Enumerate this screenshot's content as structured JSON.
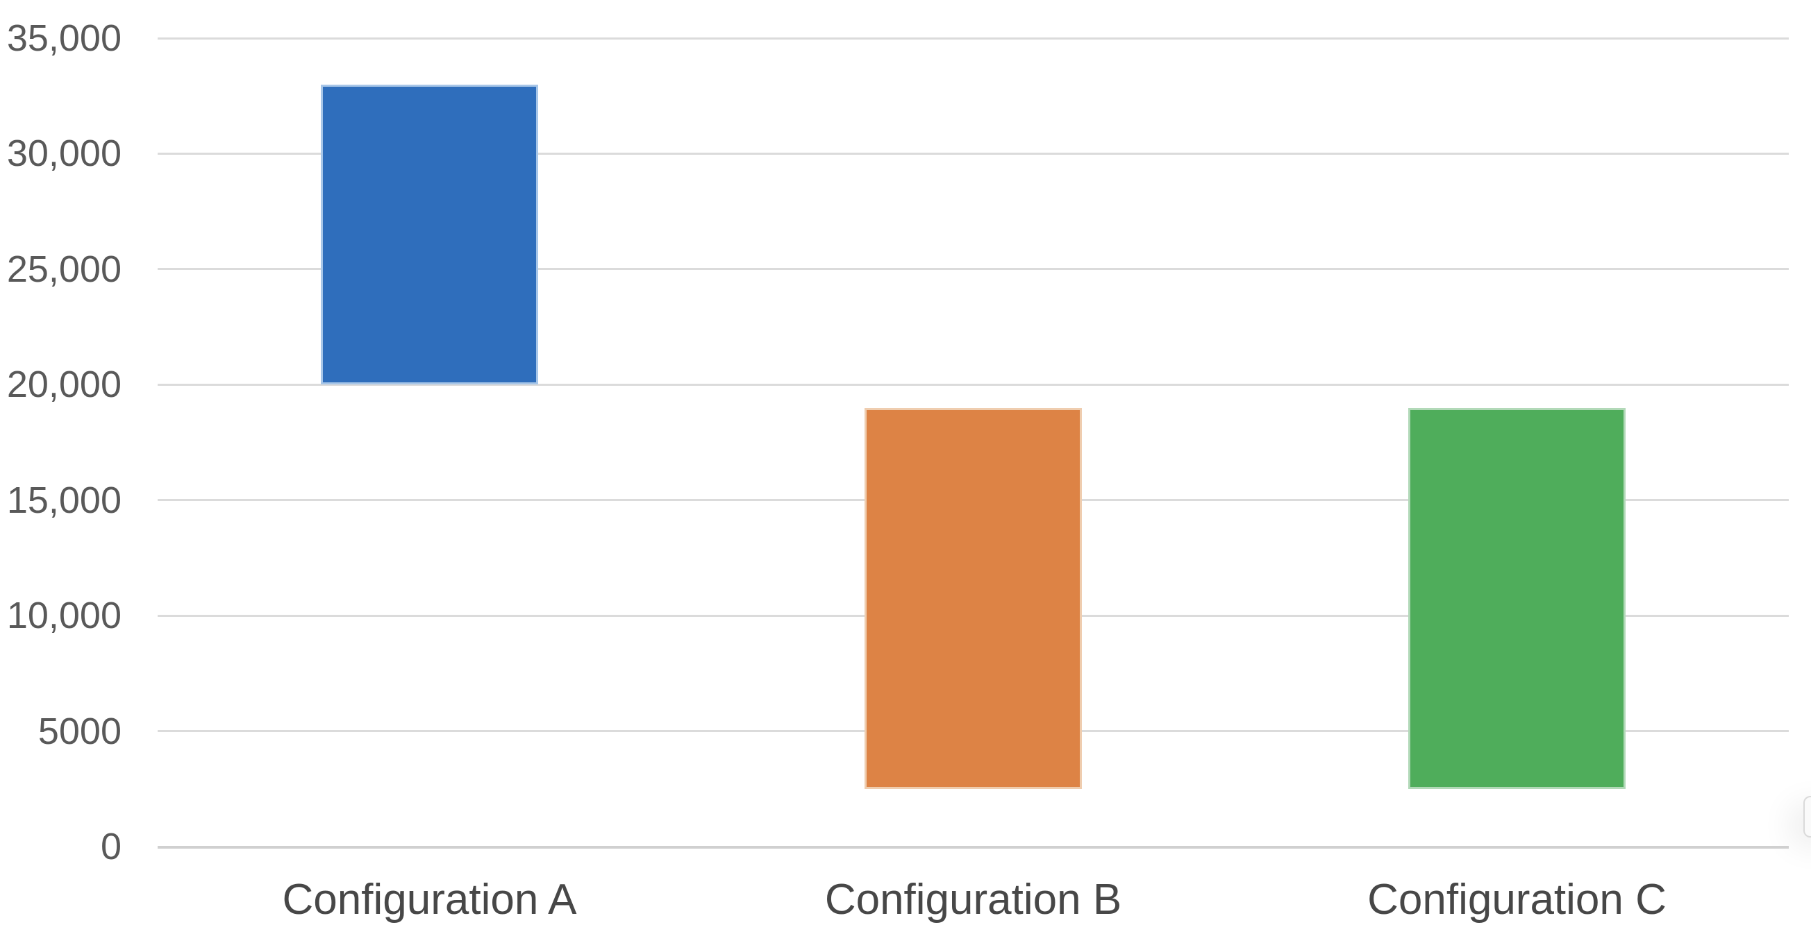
{
  "chart_data": {
    "type": "bar",
    "subtype": "floating_range_columns",
    "title": "",
    "categories": [
      "Configuration A",
      "Configuration B",
      "Configuration C"
    ],
    "bars": [
      {
        "category": "Configuration A",
        "from": 20000,
        "to": 33000,
        "color": "#2F6EBC",
        "edge_color": "#A7C6E8"
      },
      {
        "category": "Configuration B",
        "from": 2500,
        "to": 19000,
        "color": "#DD8345",
        "edge_color": "#EFCDAF"
      },
      {
        "category": "Configuration C",
        "from": 2500,
        "to": 19000,
        "color": "#4FAD5B",
        "edge_color": "#B2D9B8"
      }
    ],
    "y_axis": {
      "min": 0,
      "max": 35000,
      "tick_interval": 5000,
      "ticks": [
        {
          "label": "35,000",
          "value": 35000
        },
        {
          "label": "30,000",
          "value": 30000
        },
        {
          "label": "25,000",
          "value": 25000
        },
        {
          "label": "20,000",
          "value": 20000
        },
        {
          "label": "15,000",
          "value": 15000
        },
        {
          "label": "10,000",
          "value": 10000
        },
        {
          "label": "5000",
          "value": 5000
        },
        {
          "label": "0",
          "value": 0
        }
      ]
    },
    "xlabel": "",
    "ylabel": "",
    "grid": true,
    "legend": false,
    "colors": {
      "tick_text": "#595959",
      "category_text": "#474747",
      "gridline": "#DBDBDB",
      "zero_line": "#D0D0D0",
      "background": "#FFFFFF"
    }
  }
}
